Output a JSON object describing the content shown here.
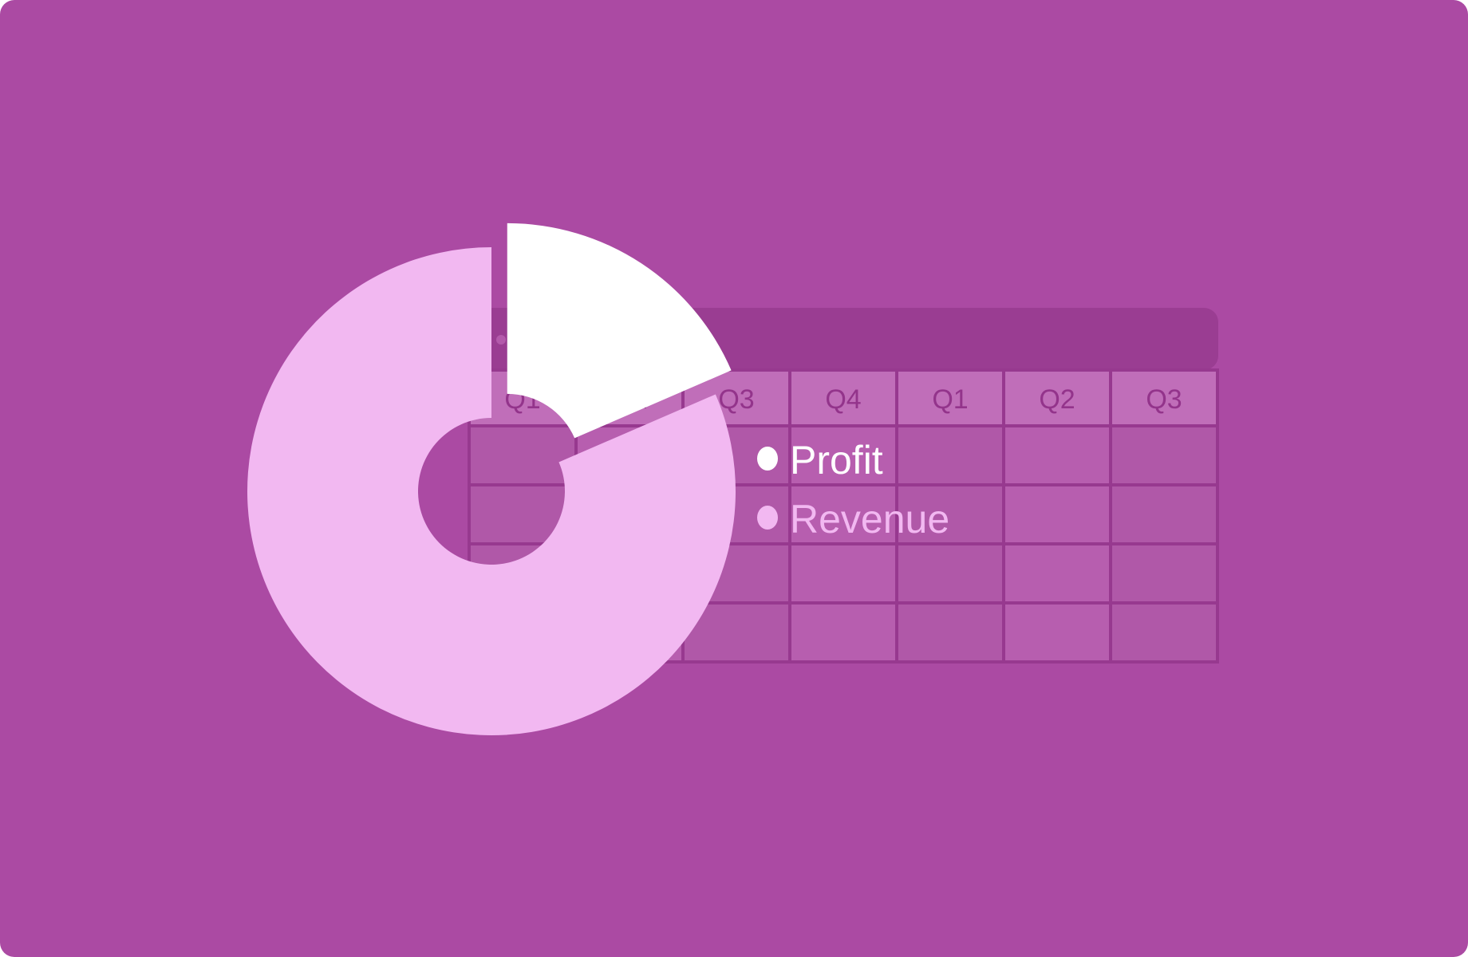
{
  "colors": {
    "background": "#ab4aa3",
    "table_header_bar": "#9a3d92",
    "table_grid_line": "#97398f",
    "table_header_cell": "#c06eb9",
    "table_header_text": "#93348b",
    "table_cell": "#b35aab",
    "profit": "#ffffff",
    "revenue": "#f2b8f1"
  },
  "table": {
    "header_row": [
      "Q1",
      "Q2",
      "Q3",
      "Q4",
      "Q1",
      "Q2",
      "Q3"
    ],
    "body_rows": 4
  },
  "chart_data": {
    "type": "pie",
    "variant": "exploded-donut",
    "slices": [
      {
        "label": "Profit",
        "value": 18.5,
        "color": "#ffffff",
        "exploded": true
      },
      {
        "label": "Revenue",
        "value": 81.5,
        "color": "#f2b8f1",
        "exploded": false
      }
    ],
    "legend": [
      {
        "label": "Profit",
        "color": "#ffffff"
      },
      {
        "label": "Revenue",
        "color": "#f2b8f1"
      }
    ],
    "legend_position": "right",
    "title": ""
  }
}
